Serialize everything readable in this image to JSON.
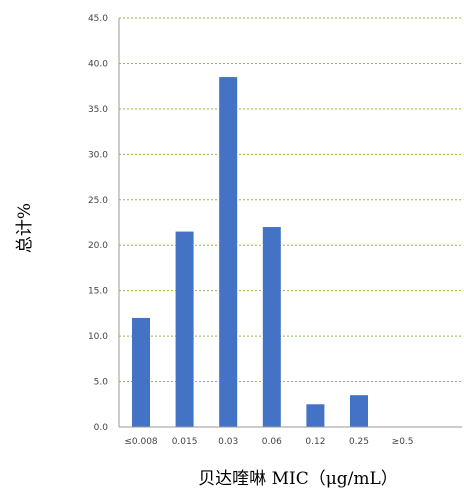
{
  "chart_data": {
    "type": "bar",
    "categories": [
      "≤0.008",
      "0.015",
      "0.03",
      "0.06",
      "0.12",
      "0.25",
      "≥0.5"
    ],
    "values": [
      12.0,
      21.5,
      38.5,
      22.0,
      2.5,
      3.5,
      0
    ],
    "xlabel": "贝达喹啉 MIC（μg/mL）",
    "ylabel": "总计%",
    "ylim": [
      0,
      45
    ],
    "yticks": [
      "0.0",
      "5.0",
      "10.0",
      "15.0",
      "20.0",
      "25.0",
      "30.0",
      "35.0",
      "40.0",
      "45.0"
    ],
    "grid": true,
    "bar_color": "#4472C4",
    "grid_color": "#8CBF3F"
  }
}
